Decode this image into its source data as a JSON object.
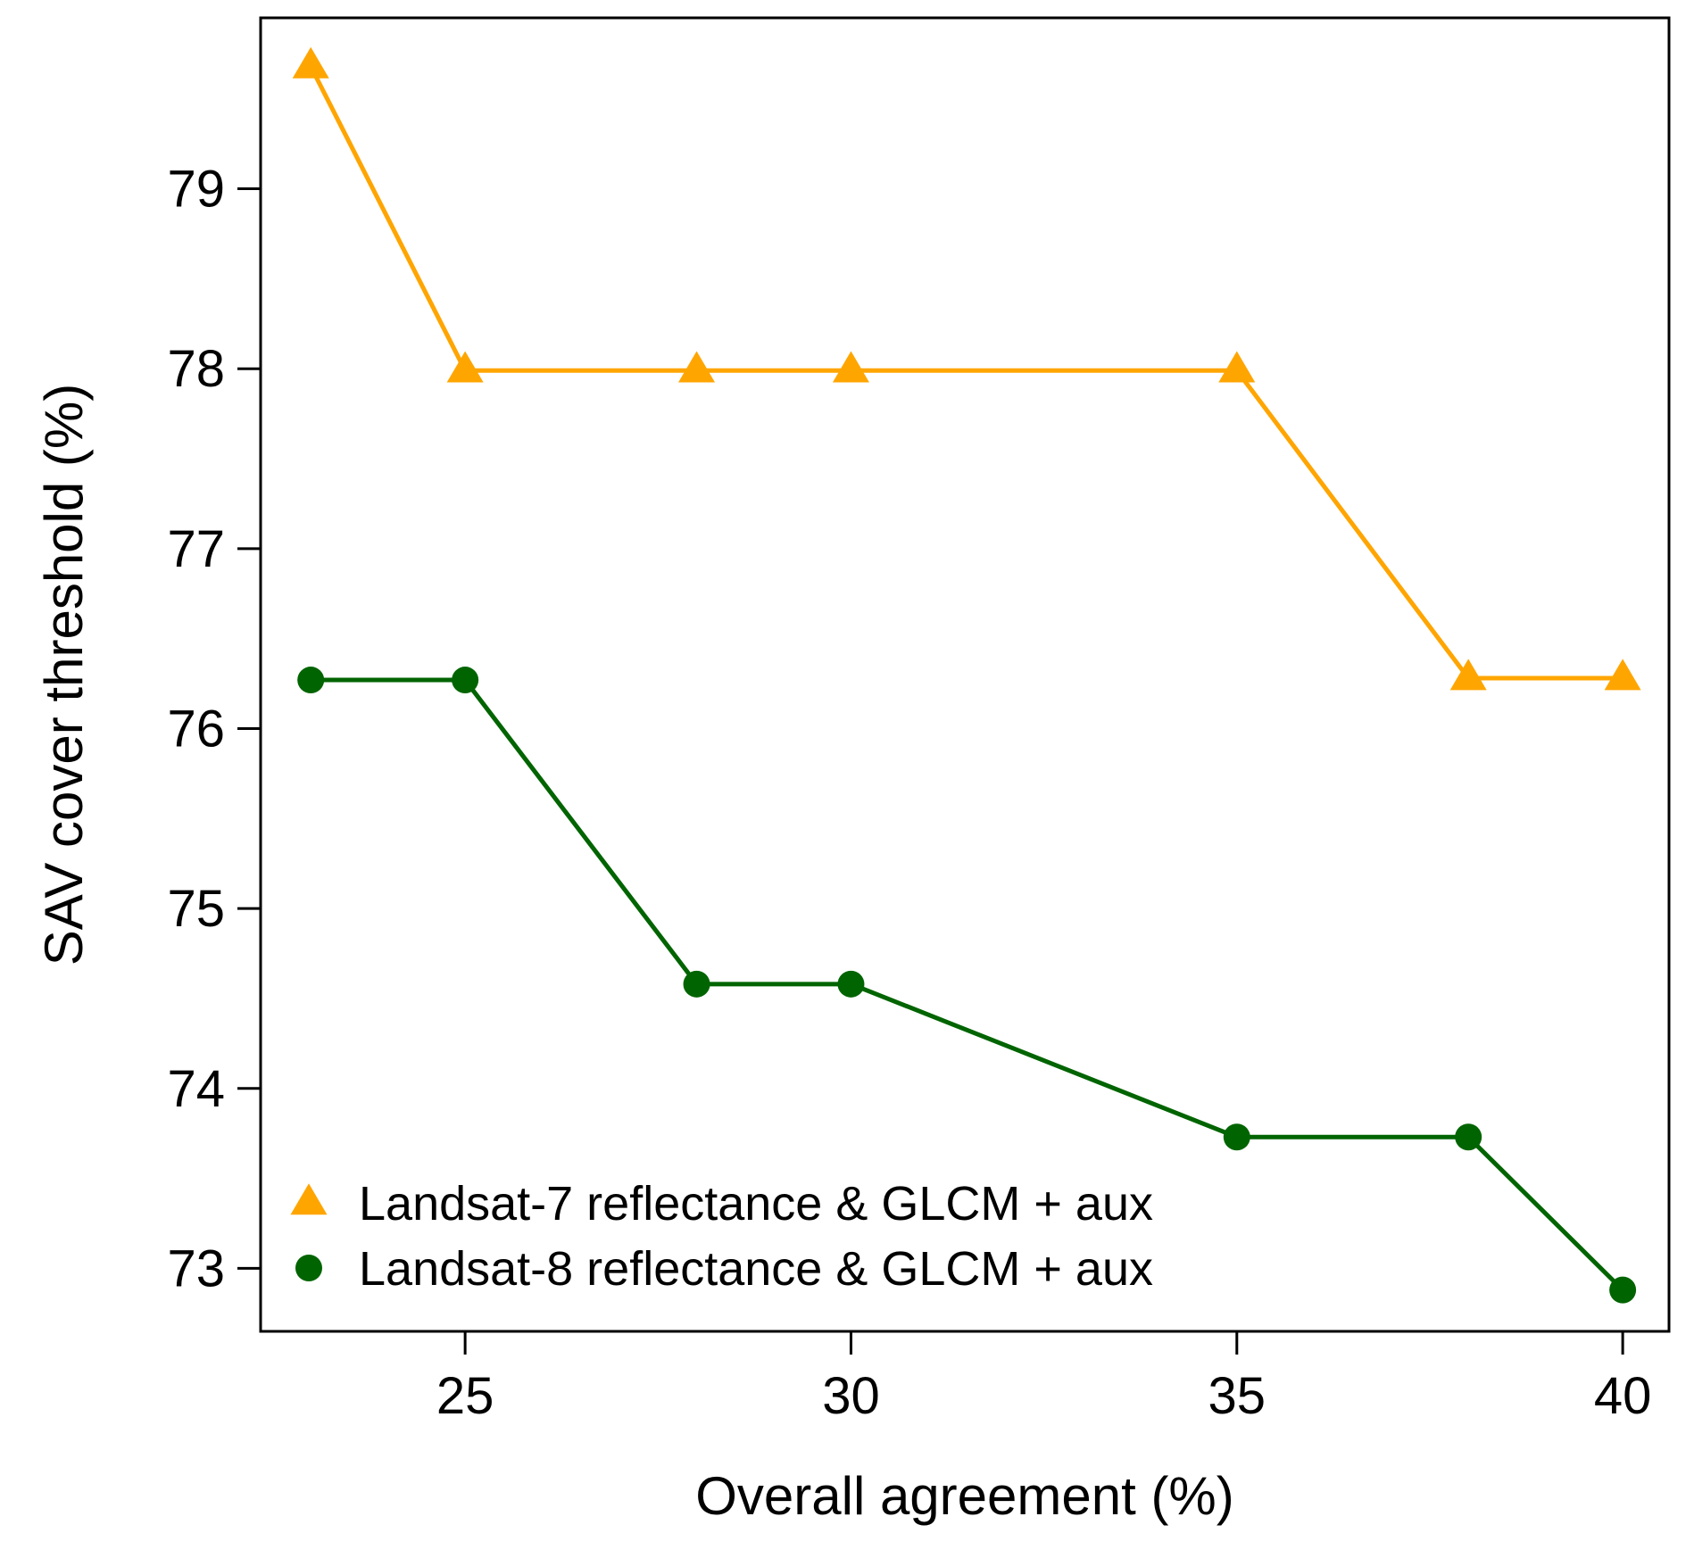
{
  "chart_data": {
    "type": "line",
    "title": "",
    "xlabel": "Overall agreement (%)",
    "ylabel": "SAV cover threshold (%)",
    "xlim": [
      22.35,
      40.6
    ],
    "ylim": [
      72.65,
      79.95
    ],
    "xticks": [
      25,
      30,
      35,
      40
    ],
    "yticks": [
      73,
      74,
      75,
      76,
      77,
      78,
      79
    ],
    "grid": false,
    "legend_position": "bottom-left",
    "series": [
      {
        "name": "Landsat-7 reflectance & GLCM + aux",
        "color": "#FFA500",
        "marker": "triangle",
        "x": [
          23,
          25,
          28,
          30,
          35,
          38,
          40
        ],
        "y": [
          79.68,
          77.99,
          77.99,
          77.99,
          77.99,
          76.28,
          76.28
        ]
      },
      {
        "name": "Landsat-8 reflectance & GLCM + aux",
        "color": "#006400",
        "marker": "circle",
        "x": [
          23,
          25,
          28,
          30,
          35,
          38,
          40
        ],
        "y": [
          76.27,
          76.27,
          74.58,
          74.58,
          73.73,
          73.73,
          72.88
        ]
      }
    ]
  }
}
